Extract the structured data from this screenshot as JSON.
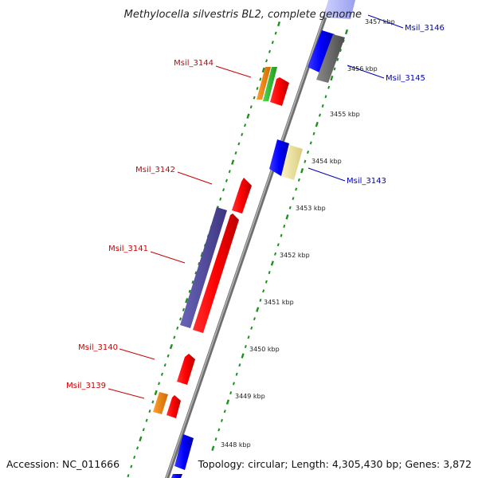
{
  "title": "Methylocella silvestris BL2, complete genome",
  "accession": "Accession: NC_011666",
  "topology": "Topology: circular; Length: 4,305,430 bp; Genes: 3,872",
  "colors": {
    "backbone": "#8a8a8a",
    "ticks": "#1f8f1f",
    "reverse_label": "#cc0000",
    "forward_label": "#0000bb"
  },
  "kbp_labels": [
    {
      "text": "3457 kbp"
    },
    {
      "text": "3456 kbp"
    },
    {
      "text": "3455 kbp"
    },
    {
      "text": "3454 kbp"
    },
    {
      "text": "3453 kbp"
    },
    {
      "text": "3452 kbp"
    },
    {
      "text": "3451 kbp"
    },
    {
      "text": "3450 kbp"
    },
    {
      "text": "3449 kbp"
    },
    {
      "text": "3448 kbp"
    }
  ],
  "gene_labels": [
    {
      "name": "Msil_3144",
      "strand": "reverse"
    },
    {
      "name": "Msil_3142",
      "strand": "reverse"
    },
    {
      "name": "Msil_3141",
      "strand": "reverse"
    },
    {
      "name": "Msil_3140",
      "strand": "reverse"
    },
    {
      "name": "Msil_3139",
      "strand": "reverse"
    },
    {
      "name": "Msil_3146",
      "strand": "forward"
    },
    {
      "name": "Msil_3145",
      "strand": "forward"
    },
    {
      "name": "Msil_3143",
      "strand": "forward"
    }
  ]
}
